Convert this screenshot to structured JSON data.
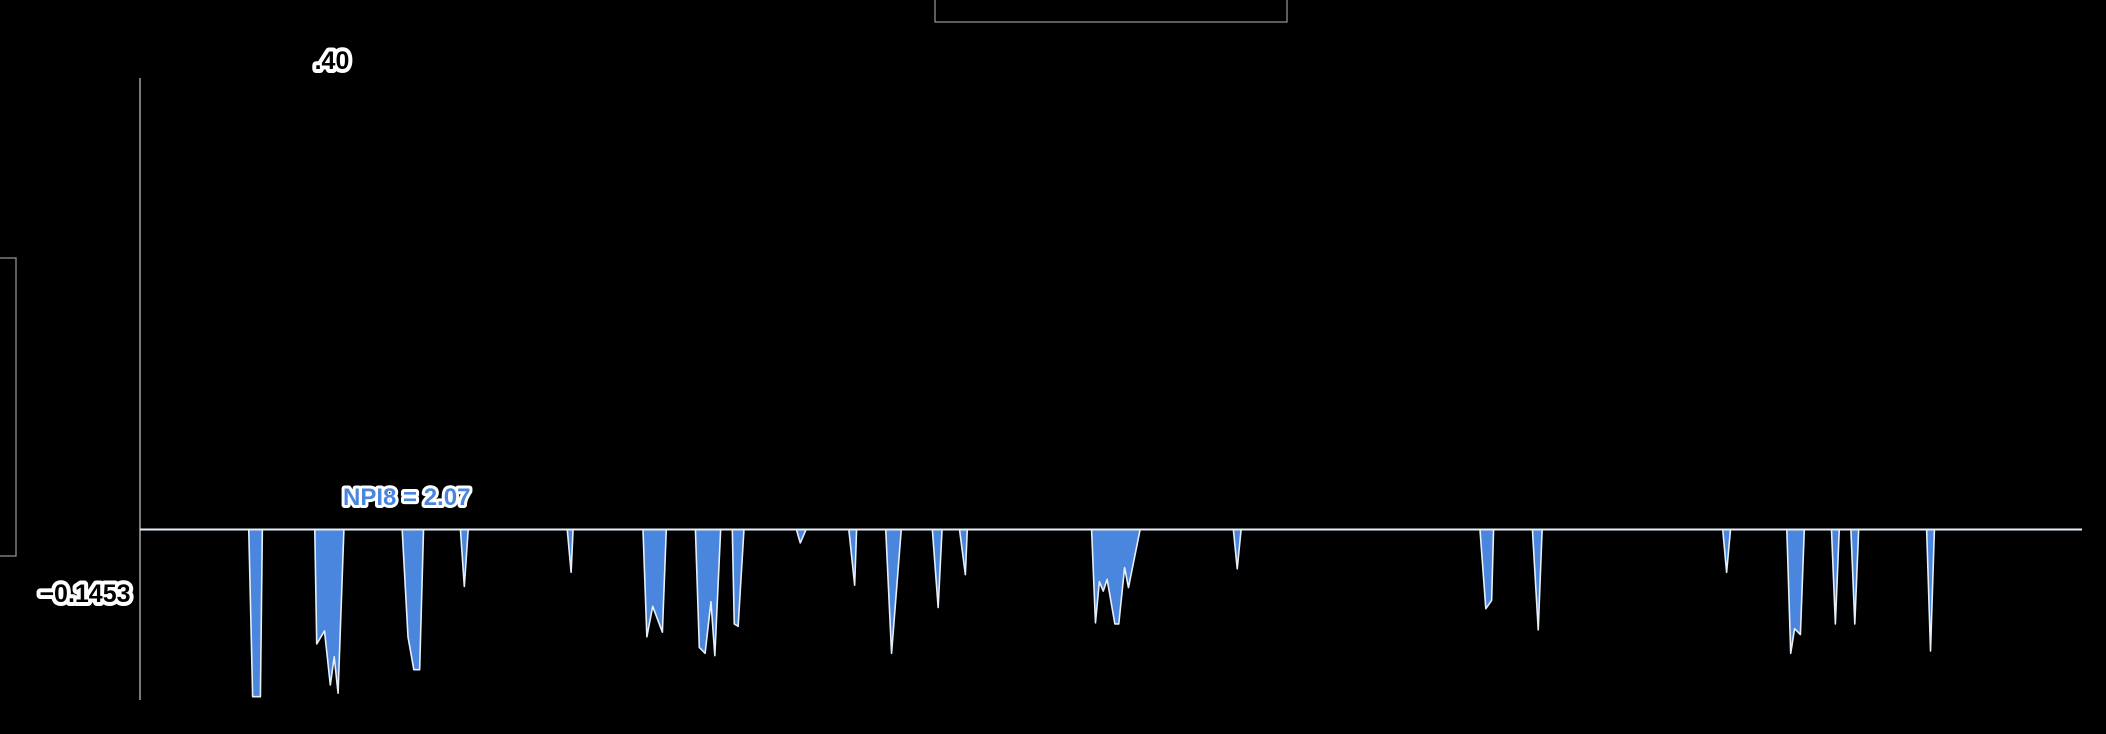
{
  "chart_data": {
    "type": "area",
    "baseline": 0,
    "ylim": [
      -0.1453,
      0.4
    ],
    "xlim": [
      0,
      1
    ],
    "y_ticks_shown": [
      0.4,
      -0.1453
    ],
    "annotations": [
      {
        "text": "NPI8 = 2.07"
      }
    ],
    "colors": {
      "fill": "#4a86dd",
      "stroke": "#e6eef8",
      "axis": "#bbbbbb",
      "background": "#000000"
    },
    "series": [
      {
        "values": [
          [
            0.0,
            0
          ],
          [
            0.056,
            0
          ],
          [
            0.058,
            -0.1425
          ],
          [
            0.062,
            -0.1425
          ],
          [
            0.063,
            0
          ],
          [
            0.09,
            0
          ],
          [
            0.091,
            -0.0975
          ],
          [
            0.095,
            -0.0865
          ],
          [
            0.098,
            -0.1325
          ],
          [
            0.1,
            -0.1085
          ],
          [
            0.102,
            -0.1395
          ],
          [
            0.105,
            0
          ],
          [
            0.135,
            0
          ],
          [
            0.138,
            -0.0915
          ],
          [
            0.141,
            -0.1195
          ],
          [
            0.144,
            -0.1195
          ],
          [
            0.146,
            0
          ],
          [
            0.165,
            0
          ],
          [
            0.167,
            -0.0485
          ],
          [
            0.169,
            0
          ],
          [
            0.22,
            0
          ],
          [
            0.222,
            -0.0365
          ],
          [
            0.223,
            0
          ],
          [
            0.259,
            0
          ],
          [
            0.261,
            -0.0915
          ],
          [
            0.264,
            -0.0655
          ],
          [
            0.269,
            -0.0875
          ],
          [
            0.271,
            0
          ],
          [
            0.286,
            0
          ],
          [
            0.288,
            -0.1005
          ],
          [
            0.291,
            -0.1055
          ],
          [
            0.294,
            -0.0615
          ],
          [
            0.296,
            -0.1075
          ],
          [
            0.299,
            0
          ],
          [
            0.305,
            0
          ],
          [
            0.306,
            -0.0805
          ],
          [
            0.308,
            -0.0825
          ],
          [
            0.311,
            0
          ],
          [
            0.338,
            0
          ],
          [
            0.34,
            -0.0115
          ],
          [
            0.343,
            0
          ],
          [
            0.365,
            0
          ],
          [
            0.368,
            -0.0475
          ],
          [
            0.369,
            0
          ],
          [
            0.384,
            0
          ],
          [
            0.387,
            -0.1055
          ],
          [
            0.392,
            0
          ],
          [
            0.408,
            0
          ],
          [
            0.411,
            -0.0665
          ],
          [
            0.413,
            0
          ],
          [
            0.422,
            0
          ],
          [
            0.425,
            -0.0385
          ],
          [
            0.426,
            0
          ],
          [
            0.49,
            0
          ],
          [
            0.492,
            -0.0795
          ],
          [
            0.494,
            -0.0445
          ],
          [
            0.496,
            -0.0525
          ],
          [
            0.498,
            -0.0425
          ],
          [
            0.502,
            -0.0805
          ],
          [
            0.504,
            -0.0805
          ],
          [
            0.507,
            -0.0325
          ],
          [
            0.509,
            -0.0495
          ],
          [
            0.515,
            0
          ],
          [
            0.563,
            0
          ],
          [
            0.565,
            -0.0335
          ],
          [
            0.567,
            0
          ],
          [
            0.69,
            0
          ],
          [
            0.693,
            -0.0675
          ],
          [
            0.696,
            -0.0605
          ],
          [
            0.697,
            0
          ],
          [
            0.717,
            0
          ],
          [
            0.72,
            -0.0855
          ],
          [
            0.722,
            0
          ],
          [
            0.815,
            0
          ],
          [
            0.817,
            -0.0365
          ],
          [
            0.819,
            0
          ],
          [
            0.848,
            0
          ],
          [
            0.85,
            -0.1055
          ],
          [
            0.852,
            -0.0845
          ],
          [
            0.855,
            -0.0895
          ],
          [
            0.857,
            0
          ],
          [
            0.871,
            0
          ],
          [
            0.873,
            -0.0805
          ],
          [
            0.875,
            0
          ],
          [
            0.881,
            0
          ],
          [
            0.883,
            -0.0805
          ],
          [
            0.885,
            0
          ],
          [
            0.92,
            0
          ],
          [
            0.922,
            -0.1035
          ],
          [
            0.924,
            0
          ],
          [
            1.0,
            0
          ]
        ]
      }
    ]
  }
}
